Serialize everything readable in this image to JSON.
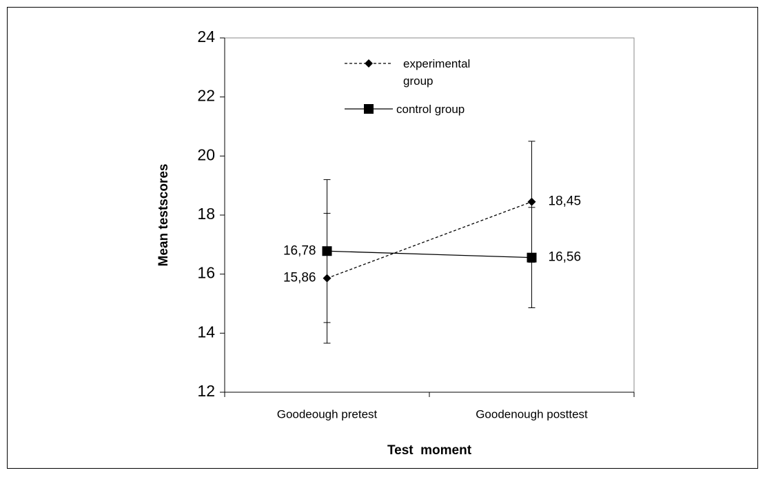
{
  "chart_data": {
    "type": "line",
    "x_label": "Test  moment",
    "y_label": "Mean testscores",
    "categories": [
      "Goodeough pretest",
      "Goodenough posttest"
    ],
    "series": [
      {
        "name": "experimental group",
        "color": "#000000",
        "line_style": "dashed",
        "marker": "diamond",
        "values": [
          15.86,
          18.45
        ],
        "value_labels": [
          "15,86",
          "18,45"
        ],
        "errors": [
          2.2,
          2.05
        ]
      },
      {
        "name": "control group",
        "color": "#000000",
        "line_style": "solid",
        "marker": "square",
        "values": [
          16.78,
          16.56
        ],
        "value_labels": [
          "16,78",
          "16,56"
        ],
        "errors": [
          2.42,
          1.7
        ]
      }
    ],
    "ylim": [
      12,
      24
    ],
    "yticks": [
      12,
      14,
      16,
      18,
      20,
      22,
      24
    ],
    "grid": false,
    "legend": "top"
  }
}
